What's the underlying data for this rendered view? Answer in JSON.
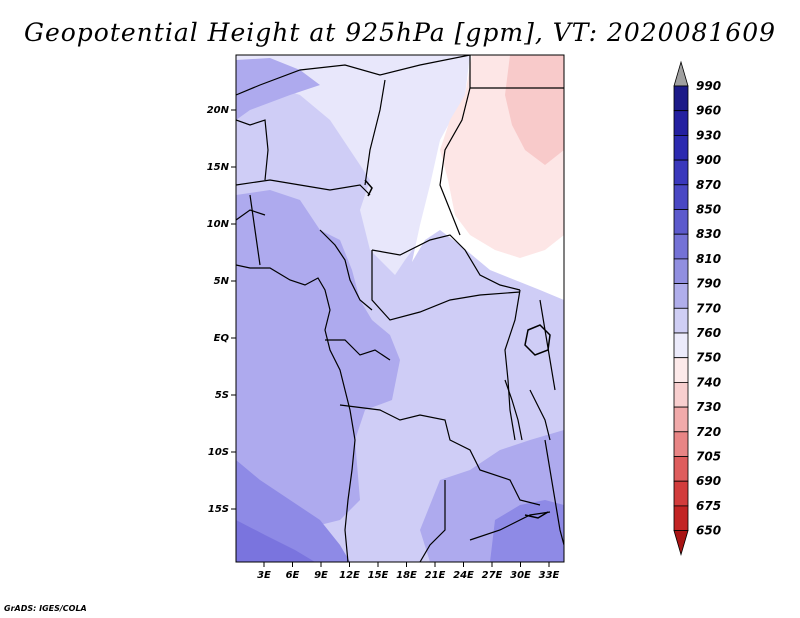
{
  "title": "Geopotential Height at 925hPa [gpm], VT: 2020081609",
  "credit": "GrADS: IGES/COLA",
  "map": {
    "region": "Central Africa",
    "lat_labels": [
      "20N",
      "15N",
      "10N",
      "5N",
      "EQ",
      "5S",
      "10S",
      "15S"
    ],
    "lon_labels": [
      "3E",
      "6E",
      "9E",
      "12E",
      "15E",
      "18E",
      "21E",
      "24E",
      "27E",
      "30E",
      "33E"
    ]
  },
  "colorbar": {
    "levels": [
      "990",
      "960",
      "930",
      "900",
      "870",
      "850",
      "830",
      "810",
      "790",
      "770",
      "760",
      "750",
      "740",
      "730",
      "720",
      "705",
      "690",
      "675",
      "650"
    ],
    "colors": [
      "#1c1a88",
      "#2420a0",
      "#2c2ab0",
      "#3a38bc",
      "#4a48c4",
      "#5c5acc",
      "#7472d6",
      "#918fe0",
      "#b0aeeb",
      "#cfcef4",
      "#ecebfb",
      "#fdeaea",
      "#f8cfcf",
      "#f1aaaa",
      "#e88585",
      "#de5d5d",
      "#d23c3c",
      "#c22424",
      "#a81414"
    ],
    "top_arrow_color": "#a0a0a0",
    "bottom_arrow_color": "#a81414"
  },
  "fields": {
    "lavender_dark": "#8e8ae6",
    "lavender_mid": "#aeaaee",
    "lavender_light": "#cfcdf6",
    "pale": "#e8e7fb",
    "white": "#ffffff",
    "pink_light": "#fde6e6",
    "pink": "#f8caca",
    "purple_deep": "#7a74de"
  }
}
